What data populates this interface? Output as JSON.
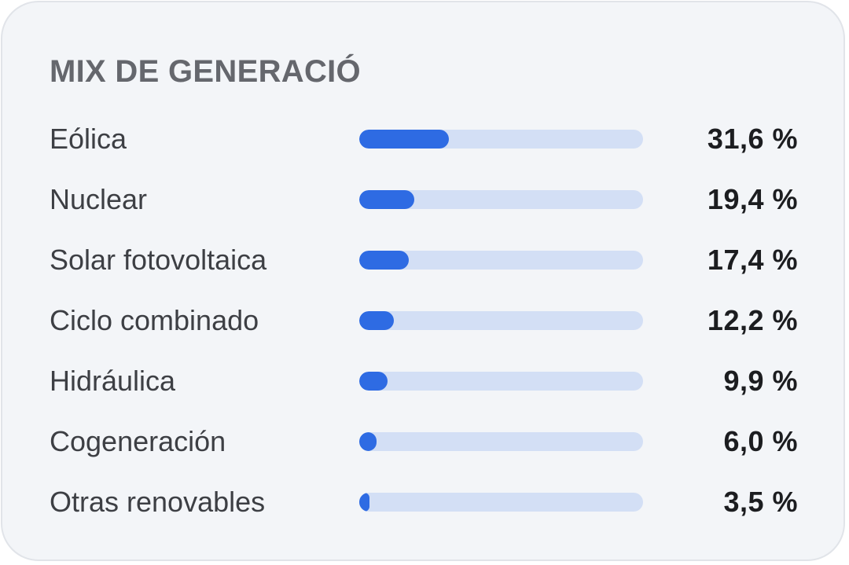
{
  "card": {
    "title": "MIX DE GENERACIÓ"
  },
  "colors": {
    "bar_fill": "#2e6be3",
    "bar_track": "#d3dff5",
    "card_background": "#f3f5f8"
  },
  "rows": [
    {
      "label": "Eólica",
      "value": "31,6 %",
      "percent": 31.6
    },
    {
      "label": "Nuclear",
      "value": "19,4 %",
      "percent": 19.4
    },
    {
      "label": "Solar fotovoltaica",
      "value": "17,4 %",
      "percent": 17.4
    },
    {
      "label": "Ciclo combinado",
      "value": "12,2 %",
      "percent": 12.2
    },
    {
      "label": "Hidráulica",
      "value": "9,9 %",
      "percent": 9.9
    },
    {
      "label": "Cogeneración",
      "value": "6,0 %",
      "percent": 6.0
    },
    {
      "label": "Otras renovables",
      "value": "3,5 %",
      "percent": 3.5
    }
  ]
}
